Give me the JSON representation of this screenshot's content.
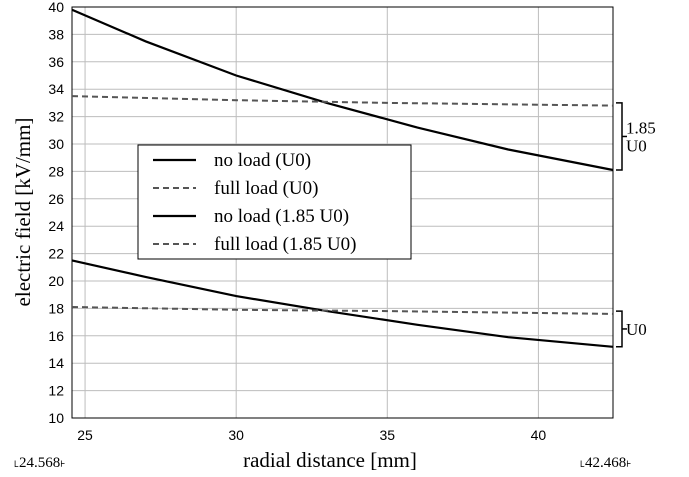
{
  "chart_data": {
    "type": "line",
    "xlabel": "radial distance [mm]",
    "ylabel": "electric field [kV/mm]",
    "xlim": [
      24.568,
      42.468
    ],
    "ylim": [
      10,
      40
    ],
    "x_ticks": [
      25,
      30,
      35,
      40
    ],
    "y_ticks": [
      10,
      12,
      14,
      16,
      18,
      20,
      22,
      24,
      26,
      28,
      30,
      32,
      34,
      36,
      38,
      40
    ],
    "x_range_labels": [
      "˪24.568˫",
      "˪42.468˫"
    ],
    "grid": true,
    "legend_placement": "center-left",
    "series": [
      {
        "name": "no load  (U0)",
        "style": "solid",
        "color": "#000000",
        "x": [
          24.568,
          27,
          30,
          33,
          36,
          39,
          42.468
        ],
        "y": [
          21.5,
          20.3,
          18.9,
          17.8,
          16.8,
          15.9,
          15.2
        ]
      },
      {
        "name": "full load (U0)",
        "style": "dashed",
        "color": "#555555",
        "x": [
          24.568,
          30,
          35,
          42.468
        ],
        "y": [
          18.1,
          17.9,
          17.8,
          17.6
        ]
      },
      {
        "name": "no load  (1.85 U0)",
        "style": "solid",
        "color": "#000000",
        "x": [
          24.568,
          27,
          30,
          33,
          36,
          39,
          42.468
        ],
        "y": [
          39.8,
          37.5,
          35.0,
          33.0,
          31.2,
          29.6,
          28.1
        ]
      },
      {
        "name": "full load (1.85 U0)",
        "style": "dashed",
        "color": "#555555",
        "x": [
          24.568,
          30,
          35,
          42.468
        ],
        "y": [
          33.5,
          33.2,
          33.0,
          32.8
        ]
      }
    ],
    "annotations": [
      {
        "text": "1.85\nU0",
        "y_range": [
          28.1,
          33.0
        ]
      },
      {
        "text": "U0",
        "y_range": [
          15.2,
          17.8
        ]
      }
    ]
  }
}
